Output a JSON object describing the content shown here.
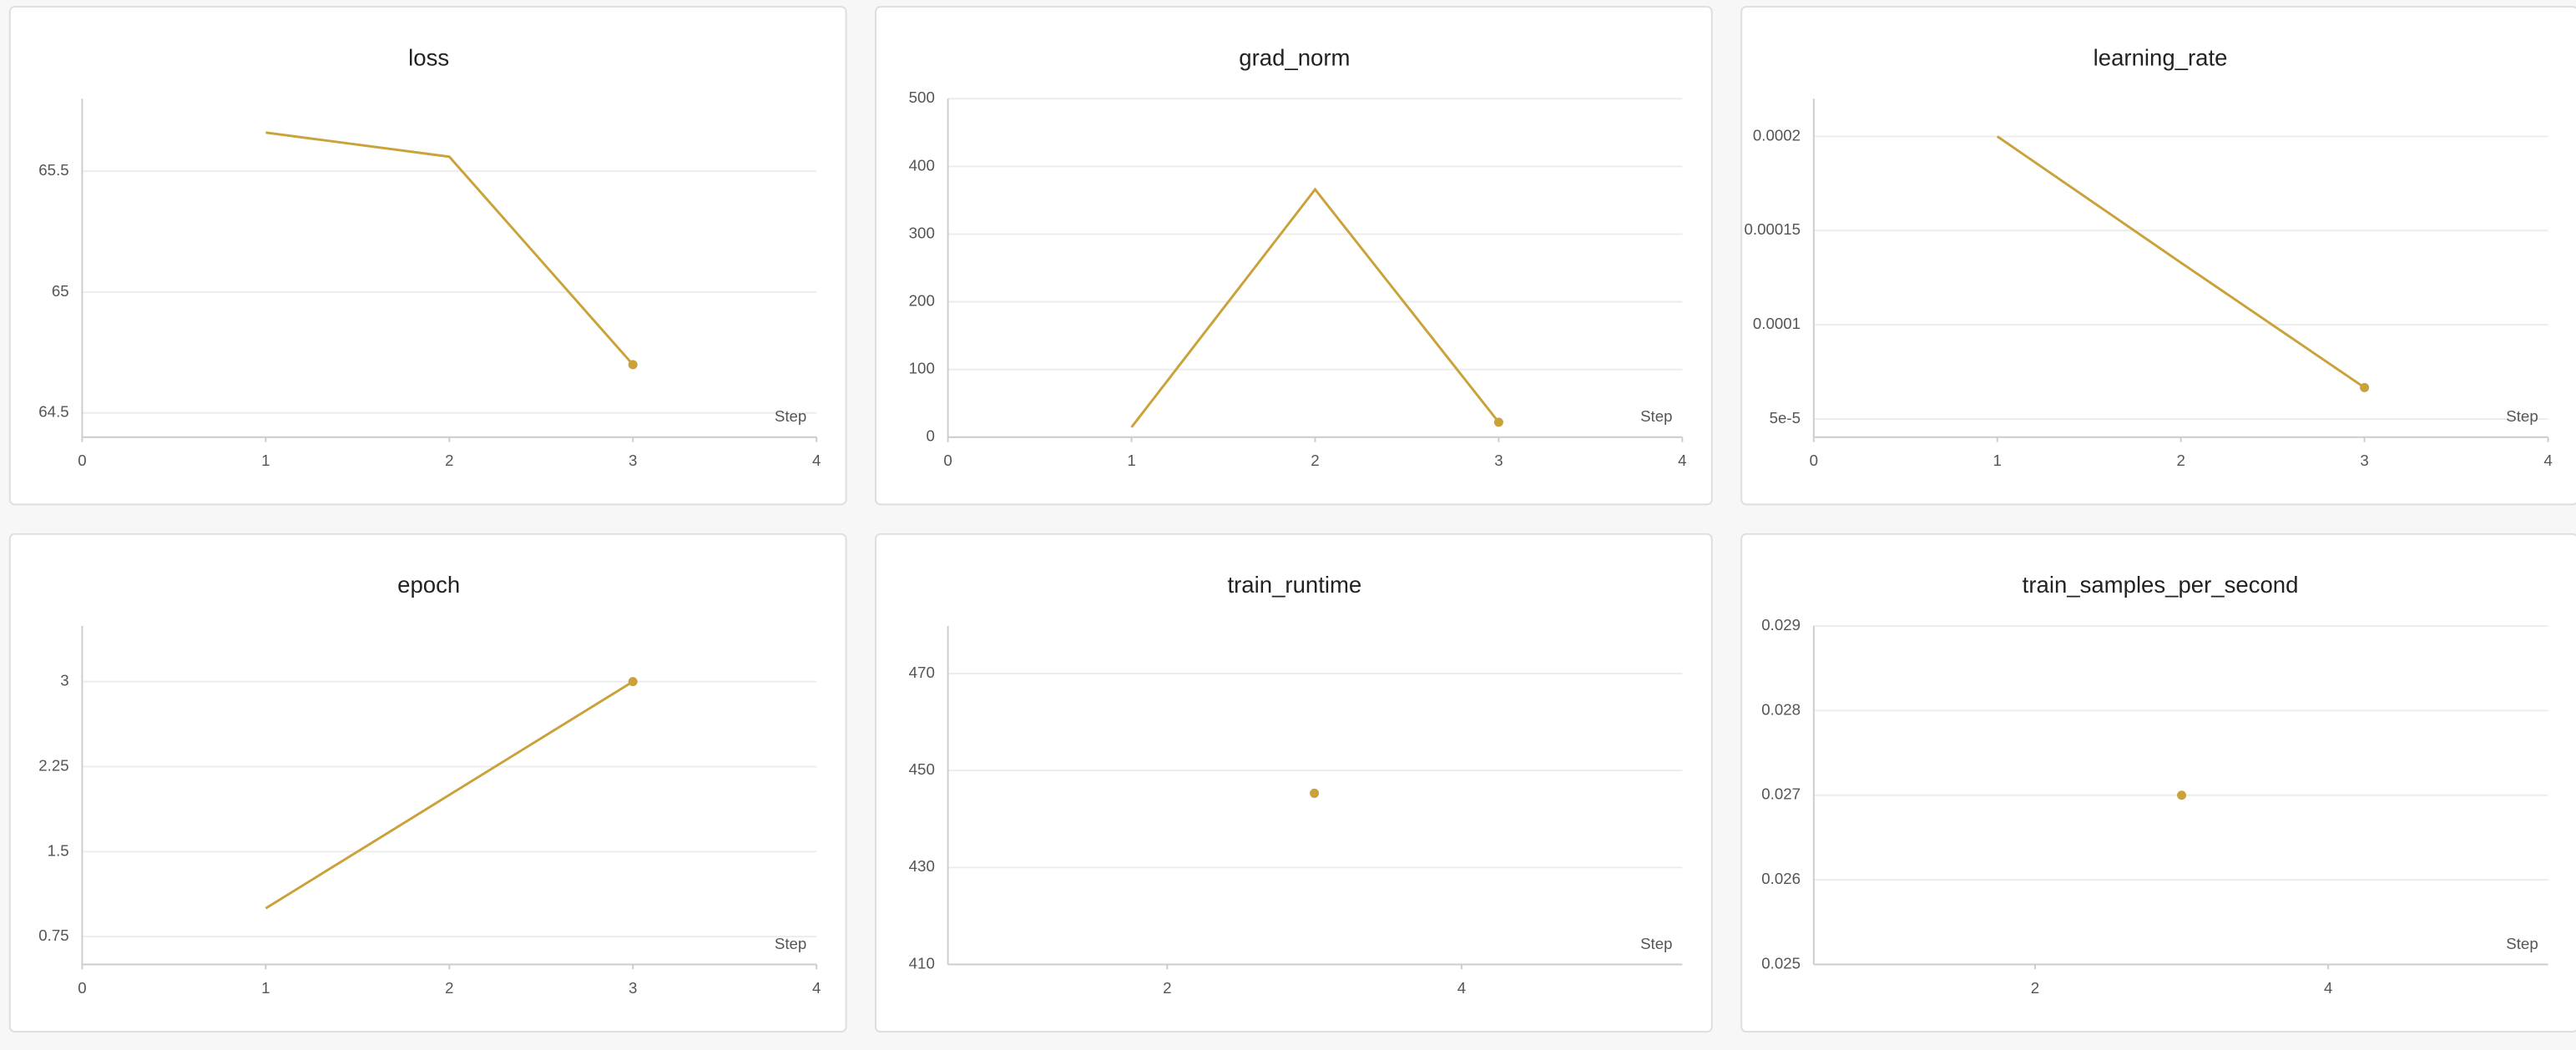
{
  "chart_data": [
    {
      "type": "line",
      "title": "loss",
      "x_label": "Step",
      "x": [
        1,
        2,
        3
      ],
      "values": [
        65.66,
        65.56,
        64.7
      ],
      "color": "#caa23a",
      "xlim": [
        0,
        4
      ],
      "xticks": [
        0,
        1,
        2,
        3,
        4
      ],
      "ylim": [
        64.4,
        65.8
      ],
      "yticks": [
        64.5,
        65,
        65.5
      ],
      "grid": true
    },
    {
      "type": "line",
      "title": "grad_norm",
      "x_label": "Step",
      "x": [
        1,
        2,
        3
      ],
      "values": [
        14.6,
        366,
        22
      ],
      "color": "#caa23a",
      "xlim": [
        0,
        4
      ],
      "xticks": [
        0,
        1,
        2,
        3,
        4
      ],
      "ylim": [
        0,
        500
      ],
      "yticks": [
        0,
        100,
        200,
        300,
        400,
        500
      ],
      "grid": true
    },
    {
      "type": "line",
      "title": "learning_rate",
      "x_label": "Step",
      "x": [
        1,
        2,
        3
      ],
      "values": [
        0.0002,
        0.000133,
        6.67e-05
      ],
      "color": "#caa23a",
      "xlim": [
        0,
        4
      ],
      "xticks": [
        0,
        1,
        2,
        3,
        4
      ],
      "ylim": [
        4.04e-05,
        0.00022
      ],
      "yticks": [
        {
          "value": 5e-05,
          "label": "5e-5"
        },
        0.0001,
        0.00015,
        0.0002
      ],
      "grid": true
    },
    {
      "type": "line",
      "title": "epoch",
      "x_label": "Step",
      "x": [
        1,
        2,
        3
      ],
      "values": [
        1,
        2,
        3
      ],
      "color": "#caa23a",
      "xlim": [
        0,
        4
      ],
      "xticks": [
        0,
        1,
        2,
        3,
        4
      ],
      "ylim": [
        0.505,
        3.49
      ],
      "yticks": [
        0.75,
        1.5,
        2.25,
        3
      ],
      "grid": true
    },
    {
      "type": "line",
      "title": "train_runtime",
      "x_label": "Step",
      "x": [
        3
      ],
      "values": [
        445.3
      ],
      "color": "#caa23a",
      "xlim": [
        0.51,
        5.5
      ],
      "xticks": [
        2,
        4
      ],
      "ylim": [
        410,
        479.8
      ],
      "yticks": [
        410,
        430,
        450,
        470
      ],
      "grid": true
    },
    {
      "type": "line",
      "title": "train_samples_per_second",
      "x_label": "Step",
      "x": [
        3
      ],
      "values": [
        0.027
      ],
      "color": "#caa23a",
      "xlim": [
        0.49,
        5.5
      ],
      "xticks": [
        2,
        4
      ],
      "ylim": [
        0.025,
        0.029
      ],
      "yticks": [
        0.025,
        0.026,
        0.027,
        0.028,
        0.029
      ],
      "grid": true
    }
  ]
}
